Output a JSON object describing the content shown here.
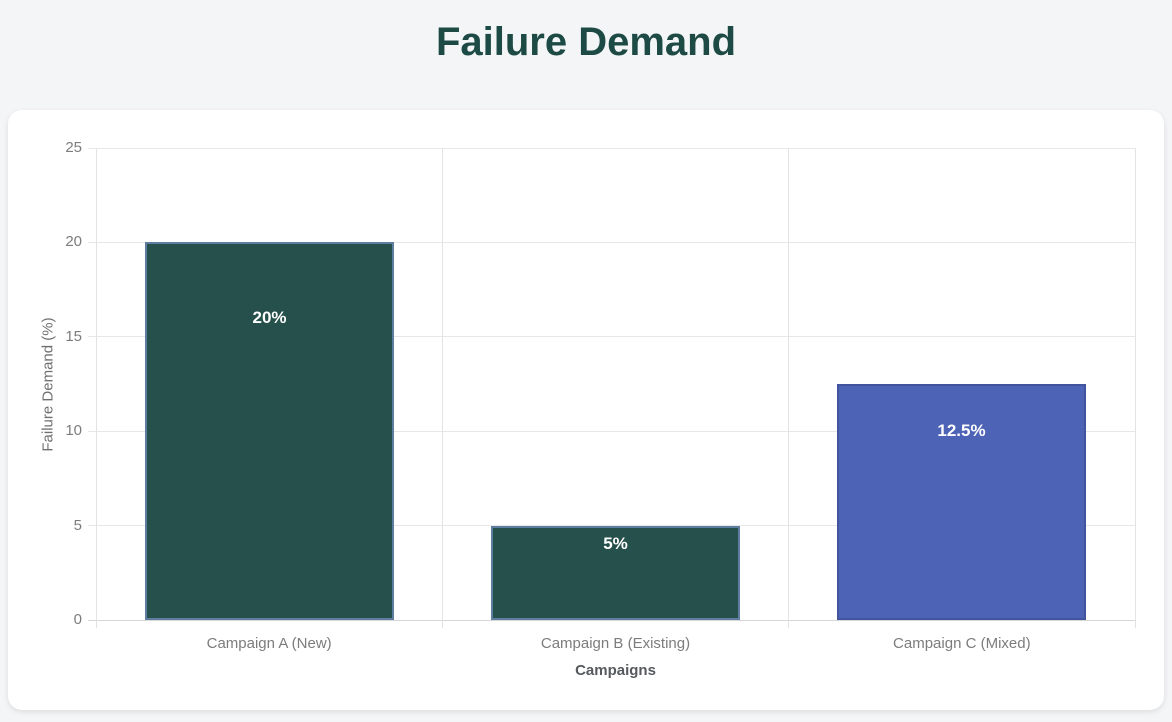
{
  "page": {
    "title": "Failure Demand",
    "background_color": "#f4f5f7",
    "card_color": "#ffffff",
    "title_color": "#1d4a45"
  },
  "chart_data": {
    "type": "bar",
    "title": "Failure Demand",
    "xlabel": "Campaigns",
    "ylabel": "Failure Demand (%)",
    "categories": [
      "Campaign A (New)",
      "Campaign B (Existing)",
      "Campaign C (Mixed)"
    ],
    "values": [
      20,
      5,
      12.5
    ],
    "value_labels": [
      "20%",
      "5%",
      "12.5%"
    ],
    "bar_fill_colors": [
      "#25504b",
      "#25504b",
      "#4d63b6"
    ],
    "bar_border_colors": [
      "#5f7ca1",
      "#5f7ca1",
      "#42549e"
    ],
    "bar_label_color": "#ffffff",
    "ylim": [
      0,
      25
    ],
    "yticks": [
      0,
      5,
      10,
      15,
      20,
      25
    ],
    "grid": true,
    "legend": "none",
    "gridline_color": "#e7e7e7",
    "tick_label_color": "#7c7c7c",
    "axis_title_color": "#56595d"
  }
}
